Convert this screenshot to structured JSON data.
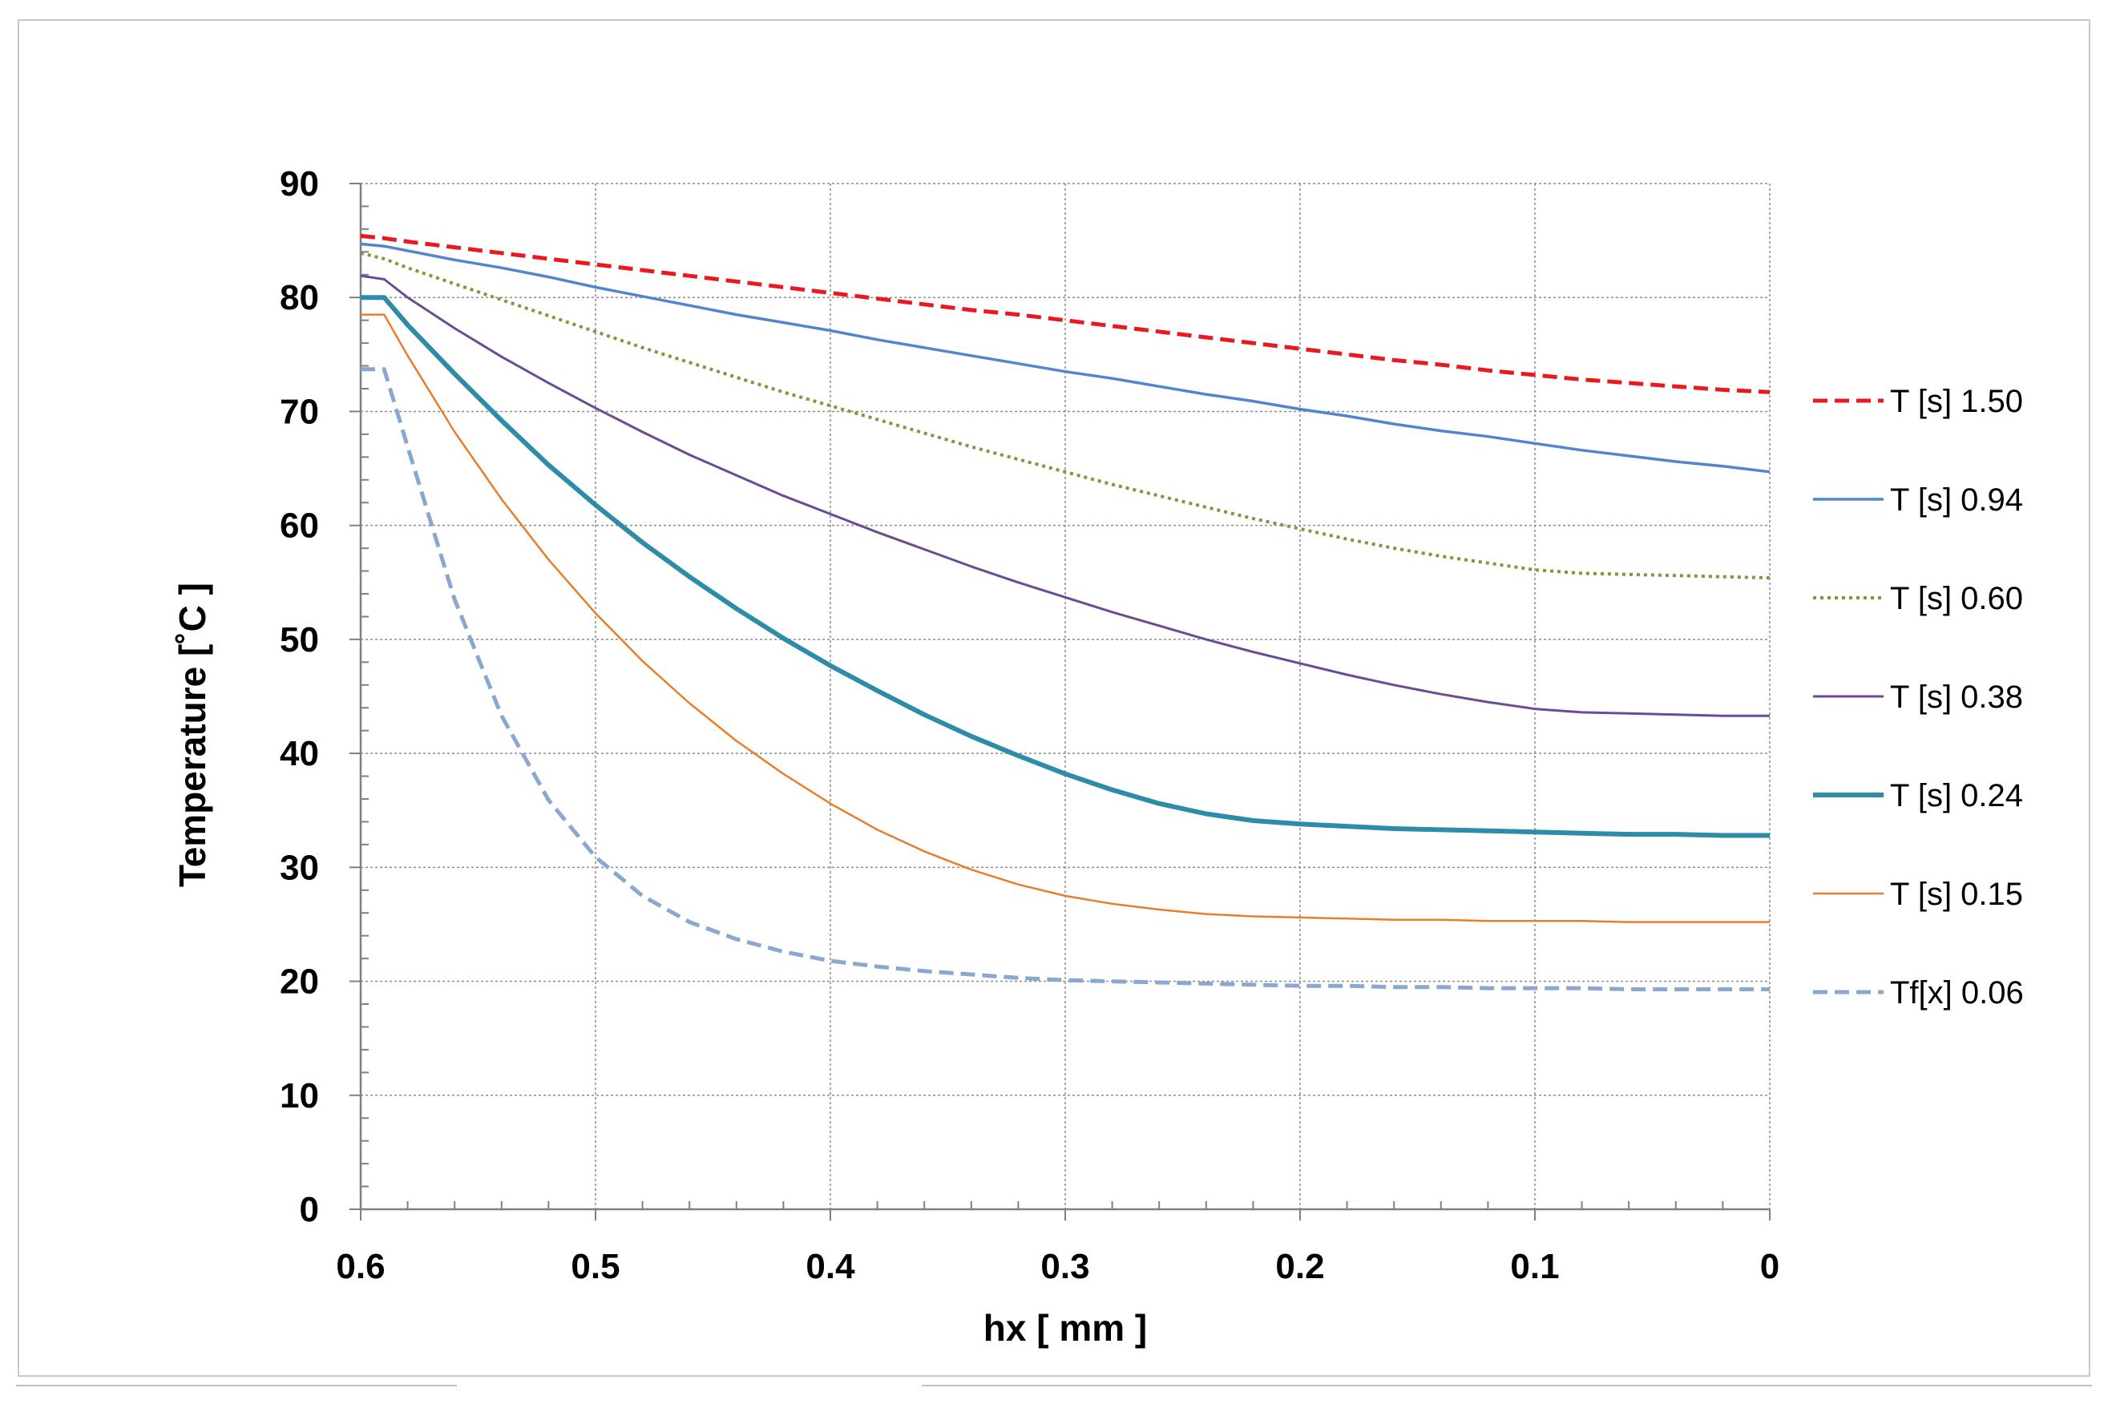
{
  "chart_data": {
    "type": "line",
    "title": "",
    "xlabel": "hx [ mm ]",
    "ylabel": "Temperature [˚C ]",
    "xlim": [
      0.6,
      0
    ],
    "ylim": [
      0,
      90
    ],
    "x_ticks": [
      "0.6",
      "0.5",
      "0.4",
      "0.3",
      "0.2",
      "0.1",
      "0"
    ],
    "y_ticks": [
      "0",
      "10",
      "20",
      "30",
      "40",
      "50",
      "60",
      "70",
      "80",
      "90"
    ],
    "grid": true,
    "legend_position": "right",
    "x": [
      0.6,
      0.59,
      0.58,
      0.56,
      0.54,
      0.52,
      0.5,
      0.48,
      0.46,
      0.44,
      0.42,
      0.4,
      0.38,
      0.36,
      0.34,
      0.32,
      0.3,
      0.28,
      0.26,
      0.24,
      0.22,
      0.2,
      0.18,
      0.16,
      0.14,
      0.12,
      0.1,
      0.08,
      0.06,
      0.04,
      0.02,
      0.0
    ],
    "series": [
      {
        "name": "T [s] 1.50",
        "color": "#e8191f",
        "dash": "dash",
        "width": 5,
        "values": [
          85.4,
          85.2,
          84.9,
          84.4,
          83.9,
          83.4,
          82.9,
          82.4,
          81.9,
          81.4,
          80.9,
          80.4,
          79.9,
          79.4,
          78.9,
          78.5,
          78.0,
          77.5,
          77.0,
          76.5,
          76.0,
          75.5,
          75.0,
          74.5,
          74.1,
          73.6,
          73.2,
          72.8,
          72.5,
          72.2,
          71.9,
          71.7
        ]
      },
      {
        "name": "T [s] 0.94",
        "color": "#4f86cc",
        "dash": "solid",
        "width": 3.5,
        "values": [
          84.7,
          84.5,
          84.1,
          83.3,
          82.6,
          81.8,
          80.9,
          80.1,
          79.3,
          78.5,
          77.8,
          77.1,
          76.3,
          75.6,
          74.9,
          74.2,
          73.5,
          72.9,
          72.2,
          71.5,
          70.9,
          70.2,
          69.6,
          68.9,
          68.3,
          67.8,
          67.2,
          66.6,
          66.1,
          65.6,
          65.2,
          64.7
        ]
      },
      {
        "name": "T [s] 0.60",
        "color": "#7a9b3d",
        "dash": "dot",
        "width": 4,
        "values": [
          83.9,
          83.4,
          82.6,
          81.2,
          79.8,
          78.4,
          77.0,
          75.6,
          74.3,
          73.0,
          71.7,
          70.5,
          69.3,
          68.1,
          66.9,
          65.8,
          64.7,
          63.6,
          62.6,
          61.6,
          60.6,
          59.7,
          58.8,
          58.0,
          57.3,
          56.7,
          56.1,
          55.8,
          55.7,
          55.6,
          55.5,
          55.4
        ]
      },
      {
        "name": "T [s] 0.38",
        "color": "#6b4c93",
        "dash": "solid",
        "width": 3,
        "values": [
          81.9,
          81.6,
          80.0,
          77.3,
          74.8,
          72.5,
          70.3,
          68.2,
          66.2,
          64.4,
          62.6,
          61.0,
          59.4,
          57.9,
          56.4,
          55.0,
          53.7,
          52.4,
          51.2,
          50.0,
          48.9,
          47.9,
          46.9,
          46.0,
          45.2,
          44.5,
          43.9,
          43.6,
          43.5,
          43.4,
          43.3,
          43.3
        ]
      },
      {
        "name": "T [s] 0.24",
        "color": "#2e8ca8",
        "dash": "solid",
        "width": 6,
        "values": [
          80.0,
          80.0,
          77.6,
          73.3,
          69.2,
          65.3,
          61.8,
          58.5,
          55.5,
          52.7,
          50.1,
          47.7,
          45.5,
          43.4,
          41.5,
          39.8,
          38.2,
          36.8,
          35.6,
          34.7,
          34.1,
          33.8,
          33.6,
          33.4,
          33.3,
          33.2,
          33.1,
          33.0,
          32.9,
          32.9,
          32.8,
          32.8
        ]
      },
      {
        "name": "T [s] 0.15",
        "color": "#e87e2c",
        "dash": "solid",
        "width": 2.5,
        "values": [
          78.5,
          78.5,
          74.9,
          68.2,
          62.3,
          57.0,
          52.3,
          48.1,
          44.4,
          41.1,
          38.2,
          35.6,
          33.3,
          31.4,
          29.8,
          28.5,
          27.5,
          26.8,
          26.3,
          25.9,
          25.7,
          25.6,
          25.5,
          25.4,
          25.4,
          25.3,
          25.3,
          25.3,
          25.2,
          25.2,
          25.2,
          25.2
        ]
      },
      {
        "name": "Tf[x] 0.06",
        "color": "#8aa8cf",
        "dash": "dash",
        "width": 5,
        "values": [
          73.7,
          73.7,
          66.9,
          53.5,
          43.3,
          35.9,
          30.9,
          27.5,
          25.2,
          23.7,
          22.6,
          21.8,
          21.3,
          20.9,
          20.6,
          20.3,
          20.1,
          20.0,
          19.9,
          19.8,
          19.7,
          19.6,
          19.6,
          19.5,
          19.5,
          19.4,
          19.4,
          19.4,
          19.3,
          19.3,
          19.3,
          19.3
        ]
      }
    ]
  }
}
